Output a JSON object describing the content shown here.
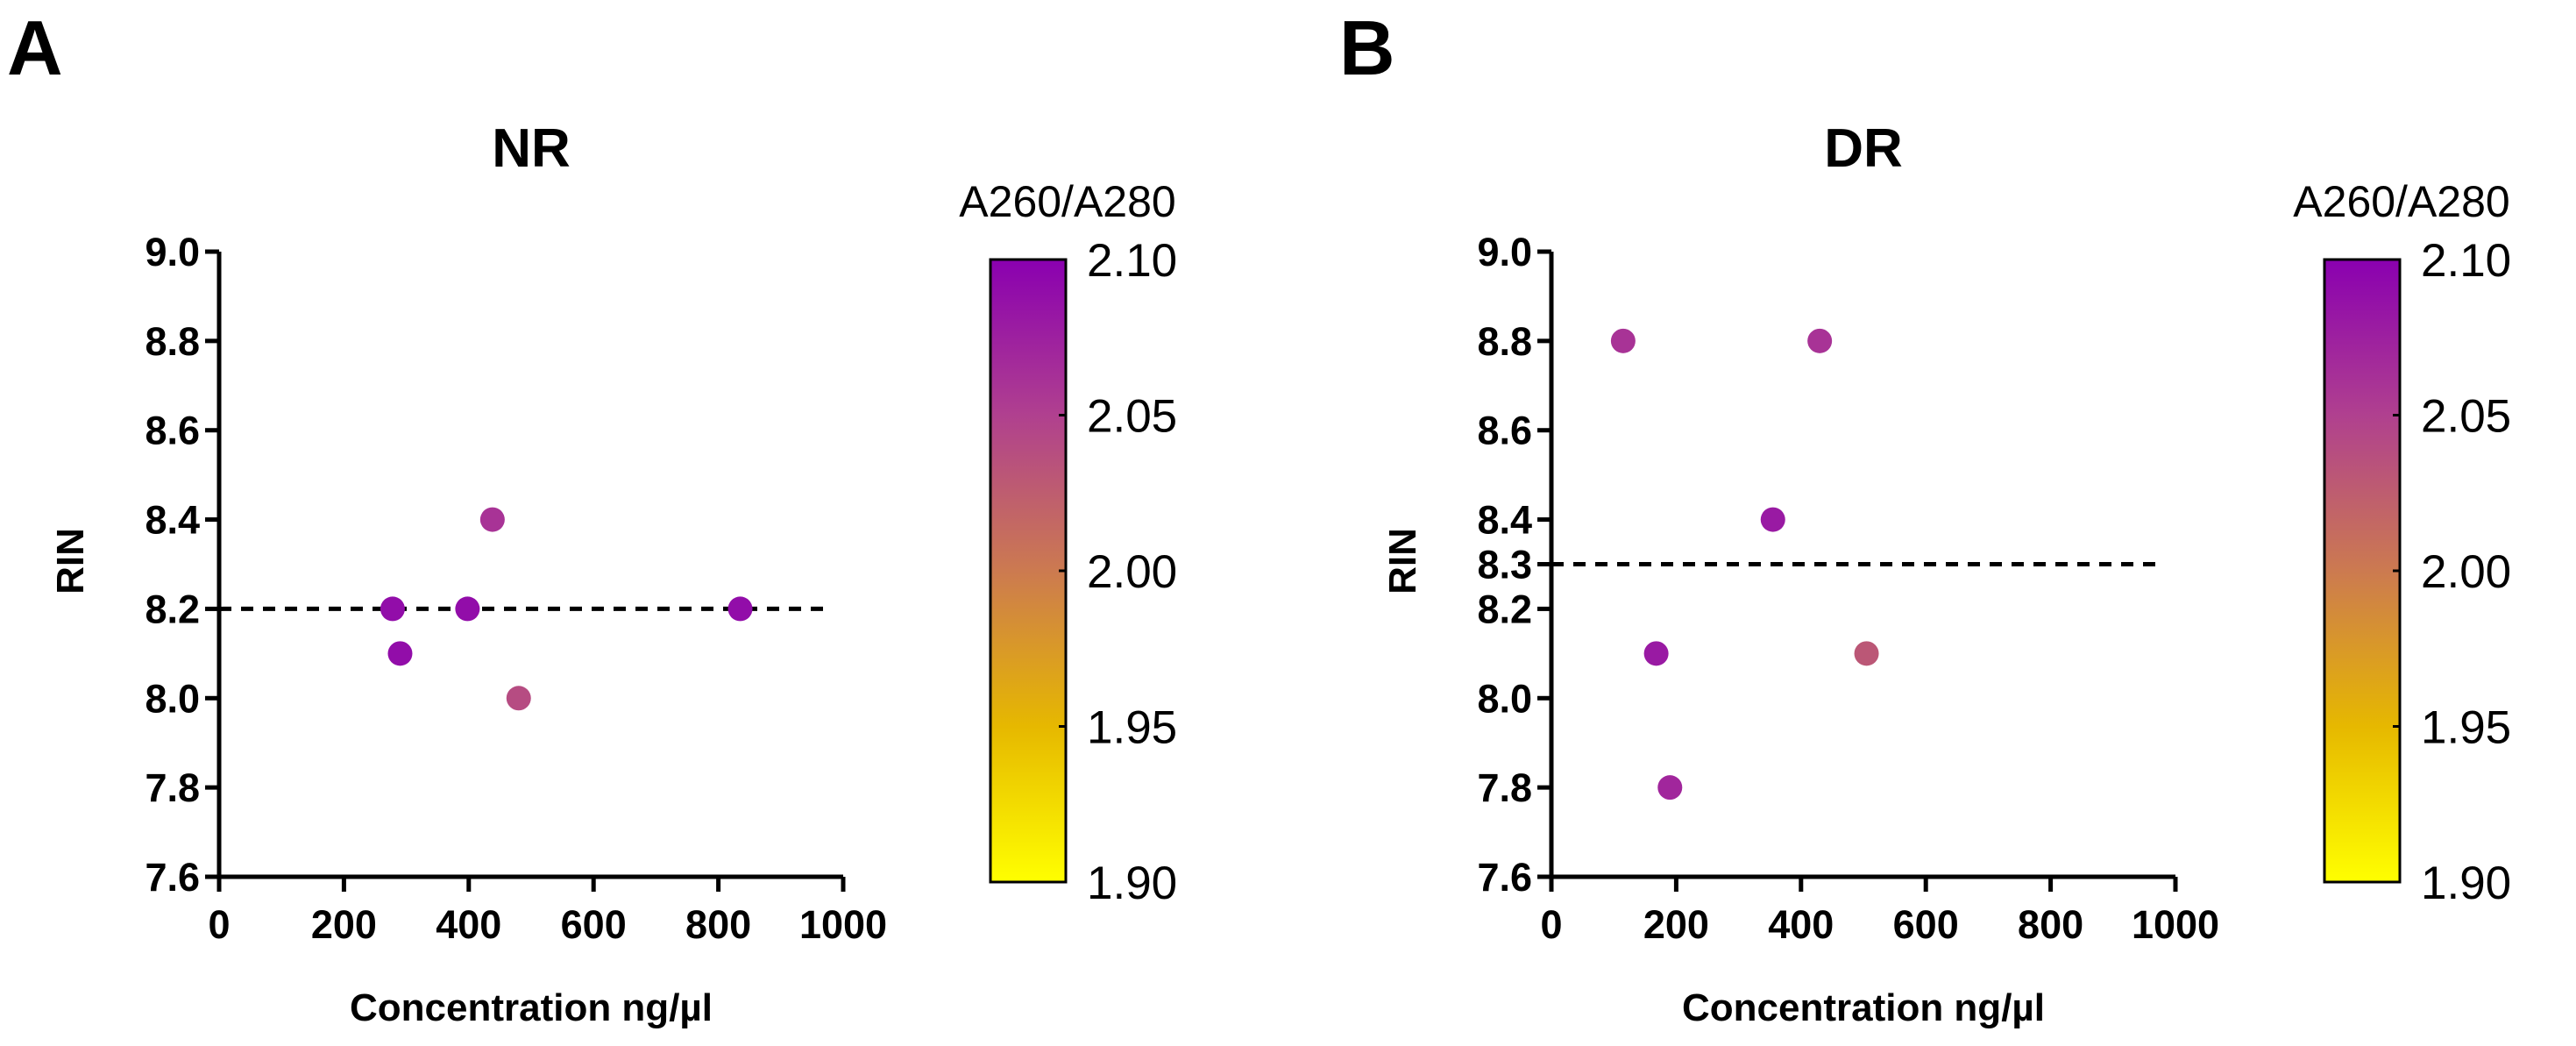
{
  "chart_data": [
    {
      "type": "scatter",
      "panel": "A",
      "title": "NR",
      "xlabel": "Concentration ng/µl",
      "ylabel": "RIN",
      "xlim": [
        0,
        1000
      ],
      "ylim": [
        7.6,
        9.0
      ],
      "xticks": [
        0,
        200,
        400,
        600,
        800,
        1000
      ],
      "yticks": [
        7.6,
        7.8,
        8.0,
        8.2,
        8.4,
        8.6,
        8.8,
        9.0
      ],
      "ytick_labels": [
        "7.6",
        "7.8",
        "8.0",
        "8.2",
        "8.4",
        "8.6",
        "8.8",
        "9.0"
      ],
      "reference_line": {
        "y": 8.2,
        "style": "dashed",
        "x_range": [
          0,
          970
        ]
      },
      "points": [
        {
          "x": 278,
          "y": 8.2,
          "ratio": 2.09
        },
        {
          "x": 290,
          "y": 8.1,
          "ratio": 2.09
        },
        {
          "x": 398,
          "y": 8.2,
          "ratio": 2.09
        },
        {
          "x": 438,
          "y": 8.4,
          "ratio": 2.06
        },
        {
          "x": 480,
          "y": 8.0,
          "ratio": 2.04
        },
        {
          "x": 835,
          "y": 8.2,
          "ratio": 2.09
        }
      ],
      "colorbar": {
        "title": "A260/A280",
        "min": 1.9,
        "max": 2.1,
        "ticks": [
          "1.90",
          "1.95",
          "2.00",
          "2.05",
          "2.10"
        ],
        "colors": [
          "#ffff00",
          "#e6b800",
          "#cc7a50",
          "#b0408f",
          "#8a00b0"
        ]
      }
    },
    {
      "type": "scatter",
      "panel": "B",
      "title": "DR",
      "xlabel": "Concentration ng/µl",
      "ylabel": "RIN",
      "xlim": [
        0,
        1000
      ],
      "ylim": [
        7.6,
        9.0
      ],
      "xticks": [
        0,
        200,
        400,
        600,
        800,
        1000
      ],
      "yticks": [
        7.6,
        7.8,
        8.0,
        8.2,
        8.3,
        8.4,
        8.6,
        8.8,
        9.0
      ],
      "ytick_labels": [
        "7.6",
        "7.8",
        "8.0",
        "8.2",
        "8.3",
        "8.4",
        "8.6",
        "8.8",
        "9.0"
      ],
      "reference_line": {
        "y": 8.3,
        "style": "dashed",
        "x_range": [
          0,
          970
        ]
      },
      "points": [
        {
          "x": 115,
          "y": 8.8,
          "ratio": 2.06
        },
        {
          "x": 168,
          "y": 8.1,
          "ratio": 2.08
        },
        {
          "x": 190,
          "y": 7.8,
          "ratio": 2.07
        },
        {
          "x": 355,
          "y": 8.4,
          "ratio": 2.08
        },
        {
          "x": 430,
          "y": 8.8,
          "ratio": 2.06
        },
        {
          "x": 505,
          "y": 8.1,
          "ratio": 2.03
        }
      ],
      "colorbar": {
        "title": "A260/A280",
        "min": 1.9,
        "max": 2.1,
        "ticks": [
          "1.90",
          "1.95",
          "2.00",
          "2.05",
          "2.10"
        ],
        "colors": [
          "#ffff00",
          "#e6b800",
          "#cc7a50",
          "#b0408f",
          "#8a00b0"
        ]
      }
    }
  ]
}
